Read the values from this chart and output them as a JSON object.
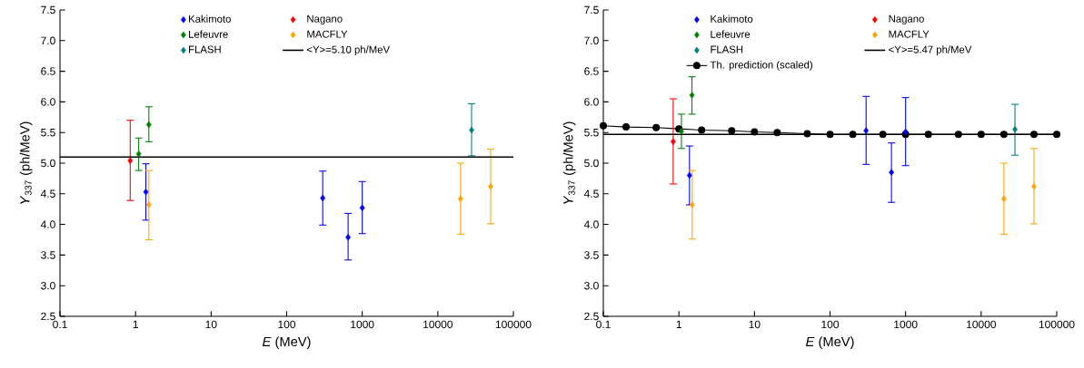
{
  "chart_data": [
    {
      "type": "scatter",
      "xlabel": "*E* (MeV)",
      "ylabel": "*Y*$_{337}$ (ph/MeV)",
      "log": "x",
      "legend": "top",
      "xlim": [
        0.1,
        100000
      ],
      "ylim": [
        2.5,
        7.5
      ],
      "xticks": [
        0.1,
        1,
        10,
        100,
        1000,
        10000,
        100000
      ],
      "yticks": [
        2.5,
        {
          "value": 3,
          "label": "3.0"
        },
        3.5,
        {
          "value": 4,
          "label": "4.0"
        },
        4.5,
        {
          "value": 5,
          "label": "5.0"
        },
        5.5,
        {
          "value": 6,
          "label": "6.0"
        },
        6.5,
        {
          "value": 7,
          "label": "7.0"
        },
        7.5
      ],
      "series": [
        {
          "name": "Kakimoto",
          "color": "#0000ff",
          "marker": "diamond",
          "x": [
            1.37,
            300,
            650,
            1000
          ],
          "values": [
            4.53,
            4.43,
            3.79,
            4.27
          ],
          "errors": [
            [
              4.07,
              4.99
            ],
            [
              3.99,
              4.87
            ],
            [
              3.42,
              4.18
            ],
            [
              3.85,
              4.7
            ]
          ]
        },
        {
          "name": "Nagano",
          "color": "#ff0000",
          "marker": "diamond",
          "x": [
            0.85
          ],
          "values": [
            5.04
          ],
          "errors": [
            [
              4.39,
              5.7
            ]
          ]
        },
        {
          "name": "Lefeuvre",
          "color": "#008000",
          "marker": "diamond",
          "x": [
            1.1,
            1.5
          ],
          "values": [
            5.15,
            5.63
          ],
          "errors": [
            [
              4.88,
              5.41
            ],
            [
              5.35,
              5.92
            ]
          ]
        },
        {
          "name": "MACFLY",
          "color": "#ffa500",
          "marker": "diamond",
          "x": [
            1.5,
            20000,
            50000
          ],
          "values": [
            4.32,
            4.42,
            4.62
          ],
          "errors": [
            [
              3.75,
              4.88
            ],
            [
              3.84,
              5.0
            ],
            [
              4.01,
              5.23
            ]
          ]
        },
        {
          "name": "FLASH",
          "color": "#008080",
          "marker": "diamond",
          "x": [
            28000
          ],
          "values": [
            5.54
          ],
          "errors": [
            [
              5.12,
              5.97
            ]
          ]
        }
      ],
      "ref_lines": [
        {
          "axis": "y",
          "value": 5.1,
          "label": "<Y>=5.10 ph/MeV",
          "color": "#000000"
        }
      ]
    },
    {
      "type": "scatter",
      "xlabel": "*E* (MeV)",
      "ylabel": "*Y*$_{337}$ (ph/MeV)",
      "log": "x",
      "legend": "top",
      "xlim": [
        0.1,
        100000
      ],
      "ylim": [
        2.5,
        7.5
      ],
      "xticks": [
        0.1,
        1,
        10,
        100,
        1000,
        10000,
        100000
      ],
      "yticks": [
        2.5,
        {
          "value": 3,
          "label": "3.0"
        },
        3.5,
        {
          "value": 4,
          "label": "4.0"
        },
        4.5,
        {
          "value": 5,
          "label": "5.0"
        },
        5.5,
        {
          "value": 6,
          "label": "6.0"
        },
        6.5,
        {
          "value": 7,
          "label": "7.0"
        },
        7.5
      ],
      "series": [
        {
          "name": "Kakimoto",
          "color": "#0000ff",
          "marker": "diamond",
          "x": [
            1.38,
            300,
            650,
            1000
          ],
          "values": [
            4.8,
            5.53,
            4.85,
            5.51
          ],
          "errors": [
            [
              4.32,
              5.28
            ],
            [
              4.98,
              6.09
            ],
            [
              4.36,
              5.33
            ],
            [
              4.96,
              6.07
            ]
          ]
        },
        {
          "name": "Nagano",
          "color": "#ff0000",
          "marker": "diamond",
          "x": [
            0.84
          ],
          "values": [
            5.35
          ],
          "errors": [
            [
              4.66,
              6.05
            ]
          ]
        },
        {
          "name": "Lefeuvre",
          "color": "#008000",
          "marker": "diamond",
          "x": [
            1.08,
            1.49
          ],
          "values": [
            5.52,
            6.11
          ],
          "errors": [
            [
              5.24,
              5.8
            ],
            [
              5.8,
              6.41
            ]
          ]
        },
        {
          "name": "MACFLY",
          "color": "#ffa500",
          "marker": "diamond",
          "x": [
            1.5,
            20000,
            50000
          ],
          "values": [
            4.32,
            4.42,
            4.62
          ],
          "errors": [
            [
              3.76,
              4.88
            ],
            [
              3.84,
              5.0
            ],
            [
              4.01,
              5.24
            ]
          ]
        },
        {
          "name": "FLASH",
          "color": "#008080",
          "marker": "diamond",
          "x": [
            28000
          ],
          "values": [
            5.55
          ],
          "errors": [
            [
              5.13,
              5.96
            ]
          ]
        },
        {
          "name": "Th. prediction (scaled)",
          "type": "line",
          "color": "#000000",
          "marker": "circle",
          "x": [
            0.1,
            0.2,
            0.5,
            1,
            2,
            5,
            10,
            20,
            50,
            100,
            200,
            500,
            1000,
            2000,
            5000,
            10000,
            20000,
            50000,
            100000
          ],
          "values": [
            5.61,
            5.59,
            5.58,
            5.56,
            5.54,
            5.53,
            5.51,
            5.5,
            5.48,
            5.47,
            5.47,
            5.47,
            5.47,
            5.47,
            5.47,
            5.47,
            5.47,
            5.47,
            5.47
          ]
        }
      ],
      "ref_lines": [
        {
          "axis": "y",
          "value": 5.47,
          "label": "<Y>=5.47 ph/MeV",
          "color": "#000000"
        }
      ]
    }
  ]
}
